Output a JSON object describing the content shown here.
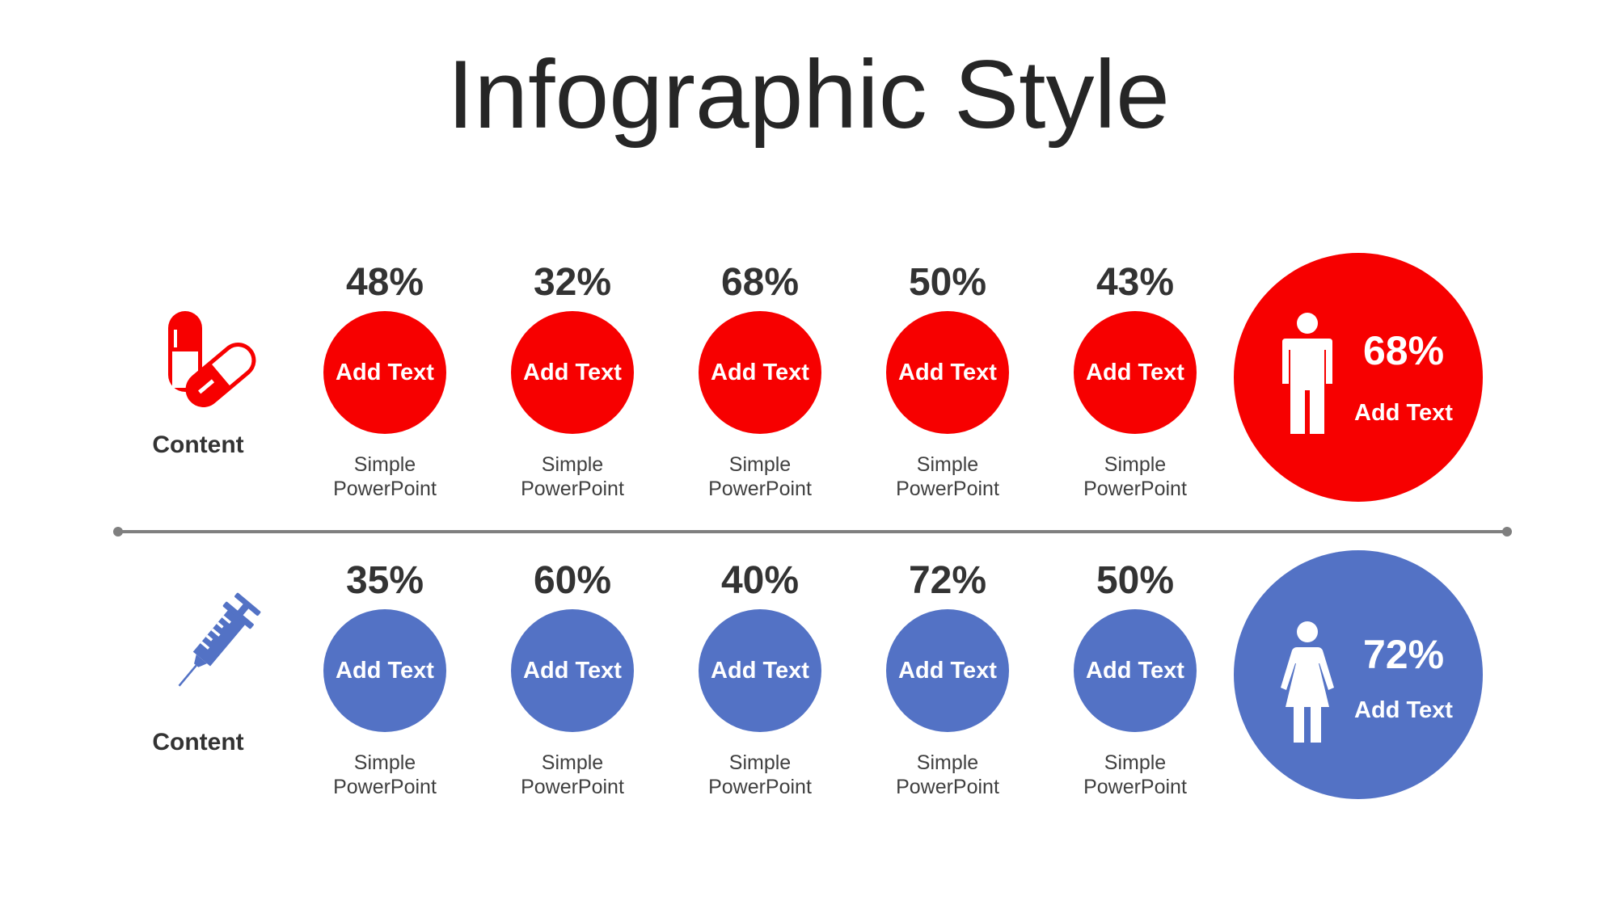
{
  "title": "Infographic Style",
  "colors": {
    "red": "#f70000",
    "blue": "#5372c5",
    "line": "#7f7f7f"
  },
  "rows": [
    {
      "icon": "pill-capsules-icon",
      "label": "Content",
      "items": [
        {
          "pct": "48%",
          "circle": "Add Text",
          "desc1": "Simple",
          "desc2": "PowerPoint"
        },
        {
          "pct": "32%",
          "circle": "Add Text",
          "desc1": "Simple",
          "desc2": "PowerPoint"
        },
        {
          "pct": "68%",
          "circle": "Add Text",
          "desc1": "Simple",
          "desc2": "PowerPoint"
        },
        {
          "pct": "50%",
          "circle": "Add Text",
          "desc1": "Simple",
          "desc2": "PowerPoint"
        },
        {
          "pct": "43%",
          "circle": "Add Text",
          "desc1": "Simple",
          "desc2": "PowerPoint"
        }
      ],
      "summary": {
        "icon": "male-person-icon",
        "pct": "68%",
        "text": "Add Text"
      }
    },
    {
      "icon": "syringe-icon",
      "label": "Content",
      "items": [
        {
          "pct": "35%",
          "circle": "Add Text",
          "desc1": "Simple",
          "desc2": "PowerPoint"
        },
        {
          "pct": "60%",
          "circle": "Add Text",
          "desc1": "Simple",
          "desc2": "PowerPoint"
        },
        {
          "pct": "40%",
          "circle": "Add Text",
          "desc1": "Simple",
          "desc2": "PowerPoint"
        },
        {
          "pct": "72%",
          "circle": "Add Text",
          "desc1": "Simple",
          "desc2": "PowerPoint"
        },
        {
          "pct": "50%",
          "circle": "Add Text",
          "desc1": "Simple",
          "desc2": "PowerPoint"
        }
      ],
      "summary": {
        "icon": "female-person-icon",
        "pct": "72%",
        "text": "Add Text"
      }
    }
  ]
}
